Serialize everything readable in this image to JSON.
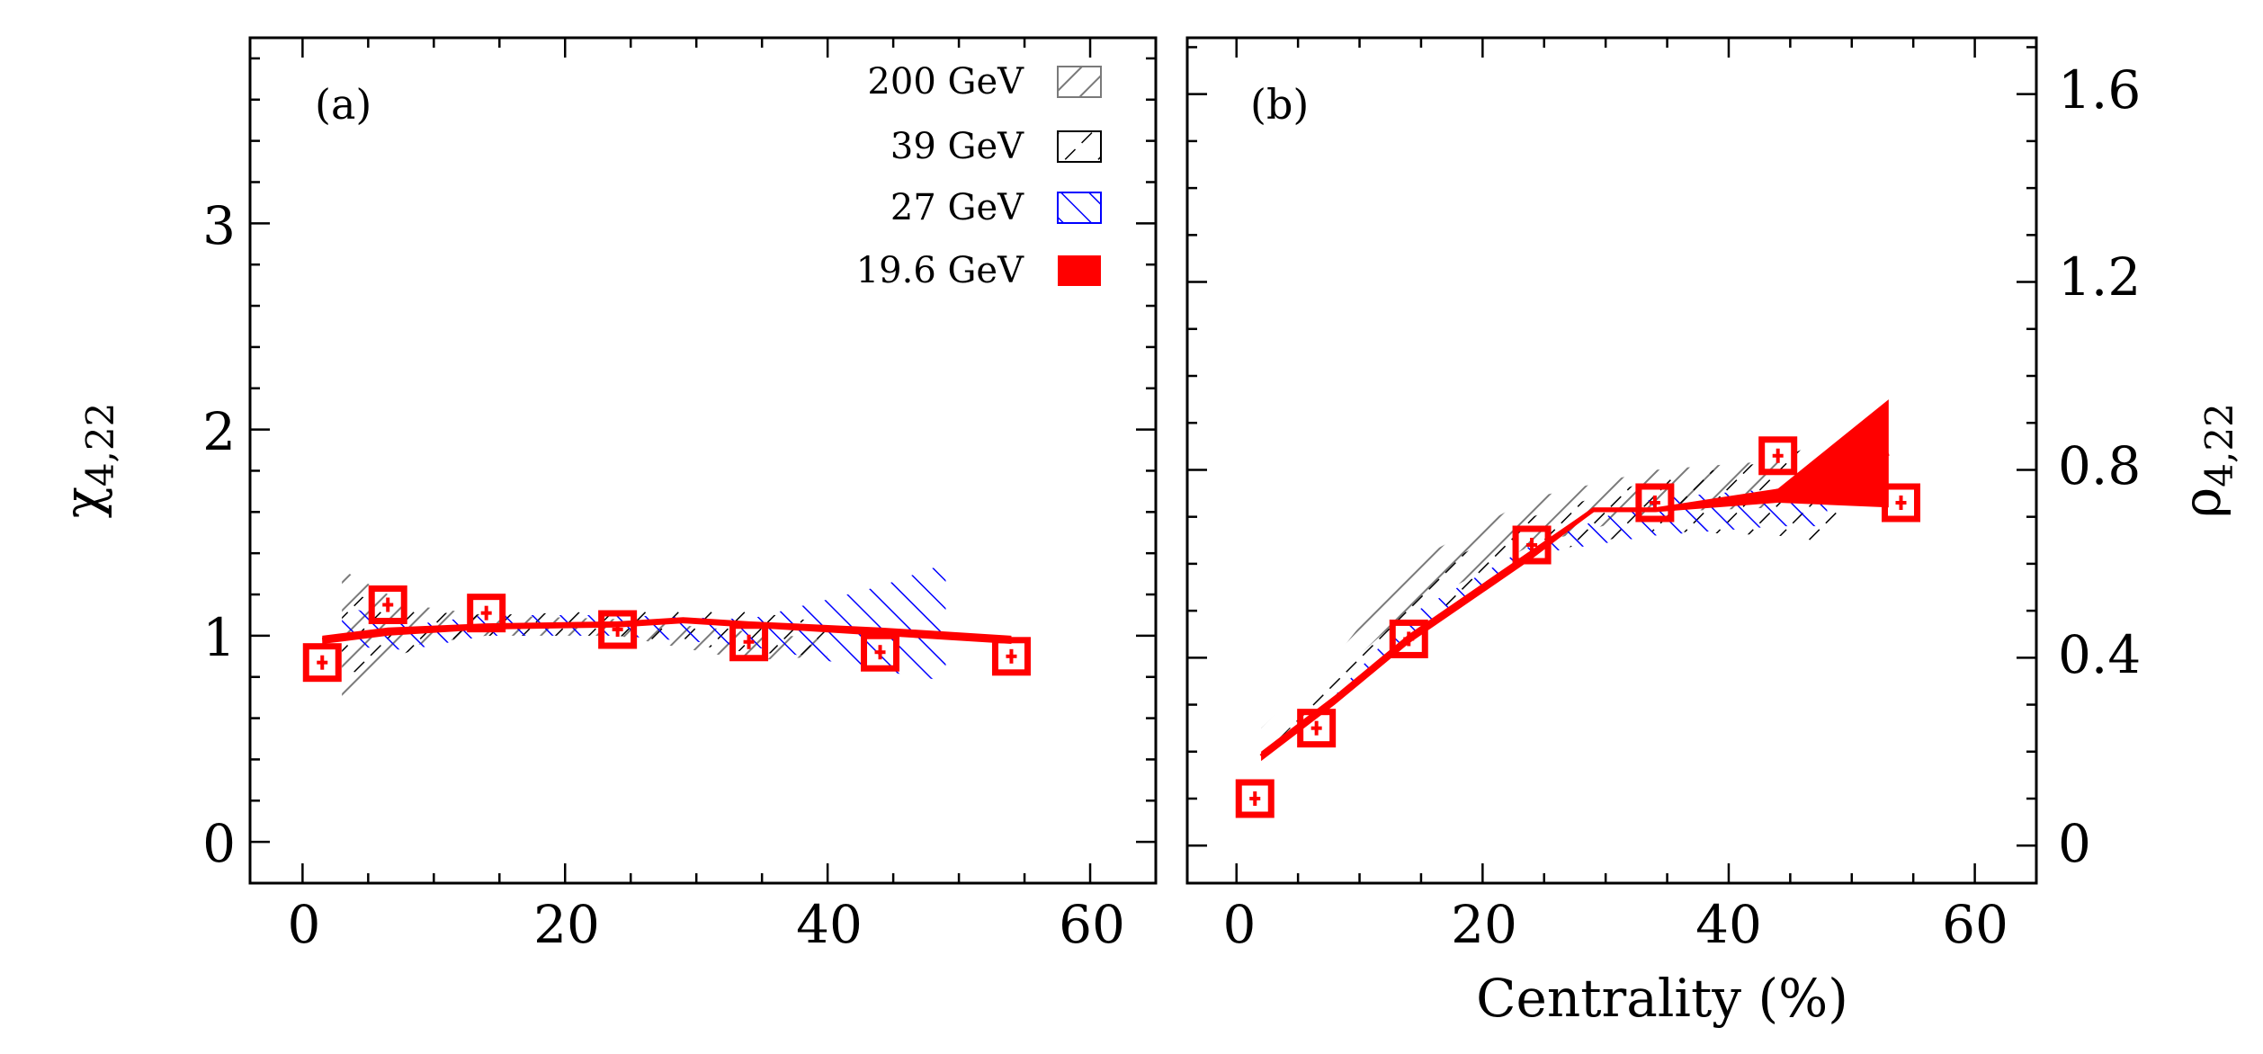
{
  "chart_data": [
    {
      "type": "scatter",
      "panel_label": "(a)",
      "xlabel": "",
      "ylabel_main": "χ",
      "ylabel_sub": "4,22",
      "xlim": [
        -4,
        65
      ],
      "ylim": [
        -0.2,
        3.9
      ],
      "x_ticks": [
        "0",
        "20",
        "40",
        "60"
      ],
      "y_ticks": [
        "0",
        "1",
        "2",
        "3"
      ],
      "legend": {
        "position": "top-right",
        "entries": [
          {
            "label": "200 GeV",
            "color": "#7a7a7a",
            "style": "hatch"
          },
          {
            "label": "39  GeV",
            "color": "#000000",
            "style": "hatch"
          },
          {
            "label": "27  GeV",
            "color": "#0000ff",
            "style": "hatch"
          },
          {
            "label": "19.6 GeV",
            "color": "#ff0000",
            "style": "solid"
          }
        ]
      },
      "series": [
        {
          "name": "19.6 GeV",
          "x": [
            1.5,
            6.5,
            14,
            24,
            34,
            44,
            54
          ],
          "y": [
            0.87,
            1.15,
            1.11,
            1.03,
            0.97,
            0.92,
            0.9
          ]
        }
      ],
      "bands": [
        {
          "name": "200 GeV",
          "x": [
            3,
            8,
            14,
            24,
            34,
            40
          ],
          "lo": [
            0.68,
            0.95,
            1.0,
            1.0,
            0.88,
            0.9
          ],
          "hi": [
            1.32,
            1.15,
            1.1,
            1.08,
            1.02,
            0.98
          ]
        },
        {
          "name": "39 GeV",
          "x": [
            3,
            8,
            14,
            24,
            34,
            40
          ],
          "lo": [
            0.8,
            0.92,
            1.0,
            1.0,
            0.92,
            0.9
          ],
          "hi": [
            1.22,
            1.12,
            1.1,
            1.12,
            1.12,
            1.06
          ]
        },
        {
          "name": "27 GeV",
          "x": [
            3,
            8,
            14,
            24,
            34,
            44,
            49
          ],
          "lo": [
            0.95,
            0.93,
            1.0,
            1.0,
            0.95,
            0.83,
            0.78
          ],
          "hi": [
            1.15,
            1.05,
            1.1,
            1.1,
            1.08,
            1.24,
            1.35
          ]
        },
        {
          "name": "19.6 GeV",
          "x": [
            1.5,
            6.5,
            14,
            24,
            29,
            34,
            44,
            54
          ],
          "lo": [
            0.96,
            1.0,
            1.03,
            1.04,
            1.06,
            1.04,
            1.0,
            0.96
          ],
          "hi": [
            1.0,
            1.04,
            1.06,
            1.07,
            1.09,
            1.07,
            1.04,
            1.0
          ]
        }
      ]
    },
    {
      "type": "scatter",
      "panel_label": "(b)",
      "xlabel": "Centrality (%)",
      "ylabel_main": "ρ",
      "ylabel_sub": "4,22",
      "xlim": [
        -4,
        65
      ],
      "ylim": [
        -0.08,
        1.72
      ],
      "x_ticks": [
        "0",
        "20",
        "40",
        "60"
      ],
      "y_ticks": [
        "0",
        "0.4",
        "0.8",
        "1.2",
        "1.6"
      ],
      "series": [
        {
          "name": "19.6 GeV",
          "x": [
            1.5,
            6.5,
            14,
            24,
            34,
            44,
            54
          ],
          "y": [
            0.1,
            0.25,
            0.44,
            0.64,
            0.73,
            0.83,
            0.73
          ]
        }
      ],
      "bands": [
        {
          "name": "200 GeV",
          "x": [
            2,
            8,
            14,
            24,
            34,
            44
          ],
          "lo": [
            0.21,
            0.36,
            0.5,
            0.64,
            0.71,
            0.72
          ],
          "hi": [
            0.25,
            0.4,
            0.6,
            0.74,
            0.8,
            0.82
          ]
        },
        {
          "name": "39 GeV",
          "x": [
            2,
            8,
            14,
            24,
            34,
            44,
            49
          ],
          "lo": [
            0.19,
            0.34,
            0.46,
            0.62,
            0.67,
            0.66,
            0.64
          ],
          "hi": [
            0.23,
            0.38,
            0.56,
            0.7,
            0.78,
            0.82,
            0.88
          ]
        },
        {
          "name": "27 GeV",
          "x": [
            8,
            14,
            24,
            34,
            44,
            48
          ],
          "lo": [
            0.3,
            0.45,
            0.62,
            0.66,
            0.68,
            0.68
          ],
          "hi": [
            0.32,
            0.49,
            0.64,
            0.74,
            0.76,
            0.76
          ]
        },
        {
          "name": "19.6 GeV",
          "x": [
            2,
            8,
            14,
            24,
            29,
            34,
            44,
            53
          ],
          "lo": [
            0.18,
            0.3,
            0.43,
            0.61,
            0.71,
            0.71,
            0.73,
            0.72
          ],
          "hi": [
            0.2,
            0.32,
            0.45,
            0.63,
            0.72,
            0.72,
            0.76,
            0.95
          ]
        }
      ]
    }
  ]
}
